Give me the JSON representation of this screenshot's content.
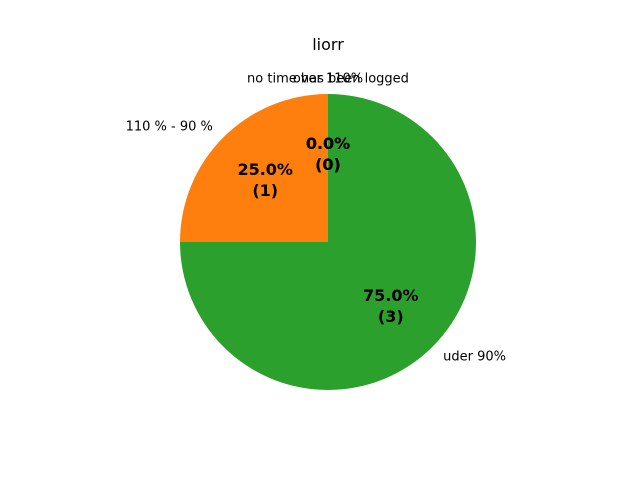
{
  "chart_data": {
    "type": "pie",
    "title": "liorr",
    "start_angle_deg": 90,
    "direction": "counterclockwise",
    "slices": [
      {
        "label": "110 % - 90 %",
        "value": 1,
        "percent_label": "25.0%",
        "count_label": "(1)",
        "color": "#ff7f0e"
      },
      {
        "label": "uder 90%",
        "value": 3,
        "percent_label": "75.0%",
        "count_label": "(3)",
        "color": "#2ca02c"
      },
      {
        "label": "over 110%",
        "value": 0,
        "percent_label": "0.0%",
        "count_label": "(0)",
        "color": "#d62728"
      },
      {
        "label": "no time has been logged",
        "value": 0,
        "percent_label": "0.0%",
        "count_label": "(0)",
        "color": "#9467bd"
      }
    ]
  }
}
